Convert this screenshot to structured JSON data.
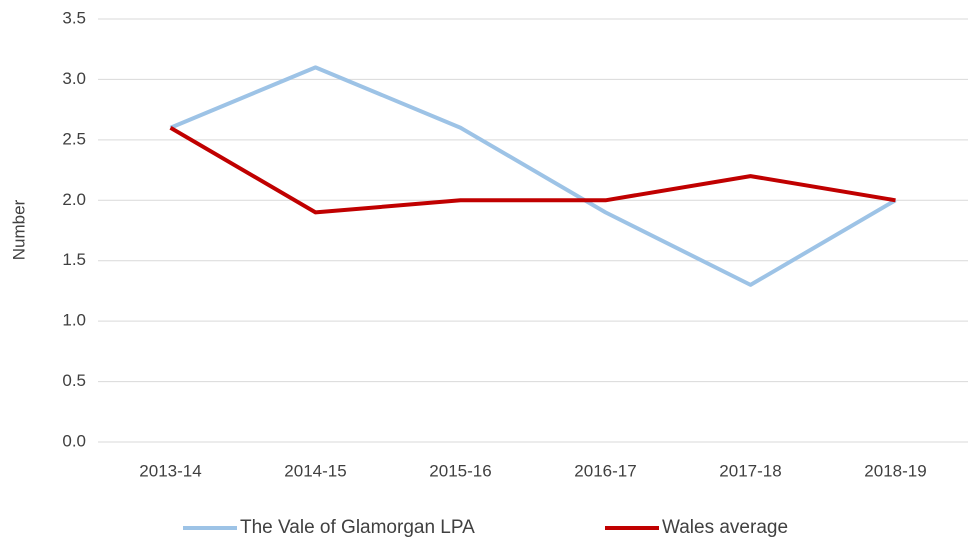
{
  "chart_data": {
    "type": "line",
    "y_label": "Number",
    "categories": [
      "2013-14",
      "2014-15",
      "2015-16",
      "2016-17",
      "2017-18",
      "2018-19"
    ],
    "series": [
      {
        "name": "The Vale of Glamorgan LPA",
        "color": "#9dc3e6",
        "values": [
          2.6,
          3.1,
          2.6,
          1.9,
          1.3,
          2.0
        ]
      },
      {
        "name": "Wales average",
        "color": "#c00000",
        "values": [
          2.6,
          1.9,
          2.0,
          2.0,
          2.2,
          2.0
        ]
      }
    ],
    "ylim": [
      0,
      3.5
    ],
    "yticks": [
      {
        "value": 0,
        "label": "0.0"
      },
      0.5,
      {
        "value": 1,
        "label": "1.0"
      },
      1.5,
      {
        "value": 2,
        "label": "2.0"
      },
      2.5,
      {
        "value": 3,
        "label": "3.0"
      },
      3.5
    ],
    "grid": true,
    "legend": "bottom"
  }
}
